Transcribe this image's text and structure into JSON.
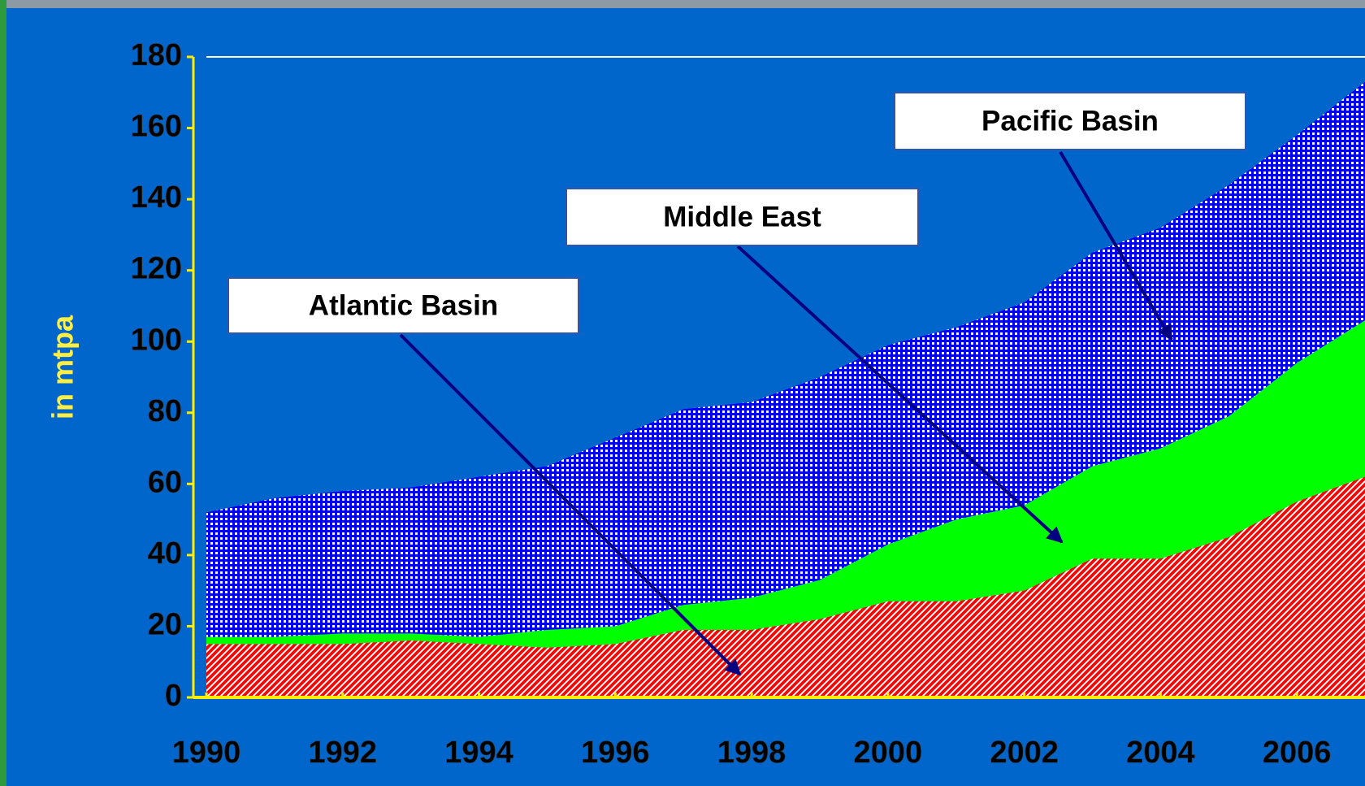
{
  "chart_data": {
    "type": "stacked_area",
    "y_label": "in mtpa",
    "x": [
      1990,
      1991,
      1992,
      1993,
      1994,
      1995,
      1996,
      1997,
      1998,
      1999,
      2000,
      2001,
      2002,
      2003,
      2004,
      2005,
      2006,
      2007
    ],
    "series": [
      {
        "name": "Atlantic Basin",
        "color": "#ff0000",
        "values": [
          15,
          15,
          15,
          16,
          15,
          14,
          15,
          19,
          19,
          22,
          27,
          27,
          30,
          39,
          39,
          45,
          55,
          62
        ]
      },
      {
        "name": "Middle East",
        "color": "#00ff00",
        "values": [
          2,
          2,
          3,
          2,
          2,
          5,
          5,
          7,
          9,
          11,
          16,
          23,
          24,
          26,
          31,
          34,
          39,
          44
        ]
      },
      {
        "name": "Pacific Basin",
        "color": "#0000ff",
        "values": [
          35,
          39,
          40,
          41,
          45,
          46,
          53,
          55,
          55,
          57,
          56,
          54,
          57,
          60,
          62,
          65,
          64,
          67
        ]
      }
    ],
    "xlim": [
      1990,
      2007
    ],
    "xticks": [
      1990,
      1992,
      1994,
      1996,
      1998,
      2000,
      2002,
      2004,
      2006
    ],
    "ylim": [
      0,
      180
    ],
    "yticks": [
      0,
      20,
      40,
      60,
      80,
      100,
      120,
      140,
      160,
      180
    ]
  }
}
